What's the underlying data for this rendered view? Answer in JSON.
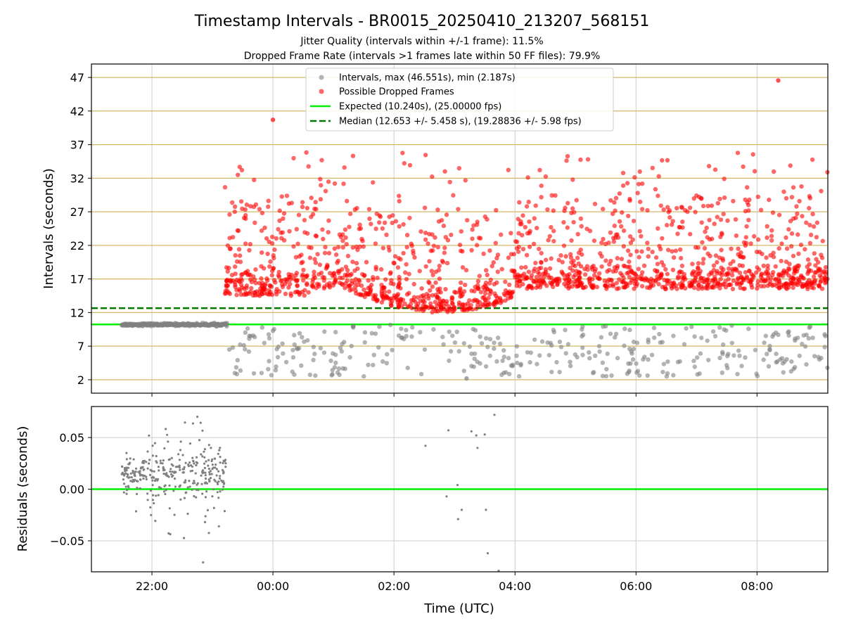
{
  "figure": {
    "title": "Timestamp Intervals - BR0015_20250410_213207_568151",
    "subtitle_1": "Jitter Quality (intervals within +/-1 frame): 11.5%",
    "subtitle_2": "Dropped Frame Rate (intervals >1 frames late within 50 FF files): 79.9%"
  },
  "colors": {
    "intervals": "#808080",
    "dropped": "#ff0000",
    "expected": "#00ee00",
    "median": "#007700",
    "hgrid": "#d4b86a",
    "vgrid": "#cccccc"
  },
  "chart_data": [
    {
      "type": "scatter",
      "panel": "intervals",
      "ylabel": "Intervals (seconds)",
      "xlabel": "",
      "x_unit": "hours since 00:00 UTC (negative = previous day)",
      "xlim": [
        -3.0,
        9.17
      ],
      "ylim": [
        0.0,
        49.0
      ],
      "yticks": [
        2,
        7,
        12,
        17,
        22,
        27,
        32,
        37,
        42,
        47
      ],
      "ytick_labels": [
        "2",
        "7",
        "12",
        "17",
        "22",
        "27",
        "32",
        "37",
        "42",
        "47"
      ],
      "legend_position": "top-center",
      "legend": [
        "Intervals, max (46.551s), min (2.187s)",
        "Possible Dropped Frames",
        "Expected (10.240s), (25.00000 fps)",
        "Median (12.653 +/- 5.458 s), (19.28836 +/- 5.98 fps)"
      ],
      "expected_line_y": 10.24,
      "median_line_y": 12.653,
      "median_line_xmin": -3.0,
      "series": [
        {
          "name": "Intervals",
          "style": "scatter",
          "segments": [
            {
              "x_start": -2.5,
              "x_end": -0.75,
              "y_min": 9.95,
              "y_max": 10.6,
              "count": 260
            },
            {
              "x_start": -0.75,
              "x_end": 9.17,
              "y_min": 2.19,
              "y_max": 10.2,
              "count": 340
            }
          ],
          "highlights": [
            {
              "x": 3.2,
              "y": 2.187
            }
          ]
        },
        {
          "name": "Possible Dropped Frames",
          "style": "scatter",
          "segments": [
            {
              "x_start": -0.8,
              "x_end": 9.17,
              "y_min": 10.3,
              "y_max": 41.0,
              "count": 1700
            }
          ],
          "highlights": [
            {
              "x": 8.35,
              "y": 46.551
            },
            {
              "x": -0.0,
              "y": 40.7
            }
          ]
        }
      ]
    },
    {
      "type": "scatter",
      "panel": "residuals",
      "ylabel": "Residuals (seconds)",
      "xlabel": "Time (UTC)",
      "xlim": [
        -3.0,
        9.17
      ],
      "ylim": [
        -0.08,
        0.08
      ],
      "yticks": [
        -0.05,
        0.0,
        0.05
      ],
      "ytick_labels": [
        "−0.05",
        "0.00",
        "0.05"
      ],
      "xticks": [
        -2,
        0,
        2,
        4,
        6,
        8
      ],
      "xtick_labels": [
        "22:00",
        "00:00",
        "02:00",
        "04:00",
        "06:00",
        "08:00"
      ],
      "zero_line_y": 0.0,
      "series": [
        {
          "name": "Residuals",
          "dense_block": {
            "x_start": -2.5,
            "x_end": -0.78,
            "count": 330
          },
          "points": [
            {
              "x": 2.52,
              "y": 0.042
            },
            {
              "x": 2.9,
              "y": 0.057
            },
            {
              "x": 3.28,
              "y": 0.056
            },
            {
              "x": 3.36,
              "y": 0.052
            },
            {
              "x": 3.5,
              "y": 0.053
            },
            {
              "x": 3.66,
              "y": 0.072
            },
            {
              "x": 3.05,
              "y": 0.004
            },
            {
              "x": 2.87,
              "y": -0.007
            },
            {
              "x": 3.12,
              "y": -0.02
            },
            {
              "x": 3.06,
              "y": -0.029
            },
            {
              "x": 3.38,
              "y": 0.04
            },
            {
              "x": 3.52,
              "y": -0.02
            },
            {
              "x": 3.55,
              "y": -0.062
            },
            {
              "x": 3.73,
              "y": -0.079
            }
          ]
        }
      ]
    }
  ]
}
